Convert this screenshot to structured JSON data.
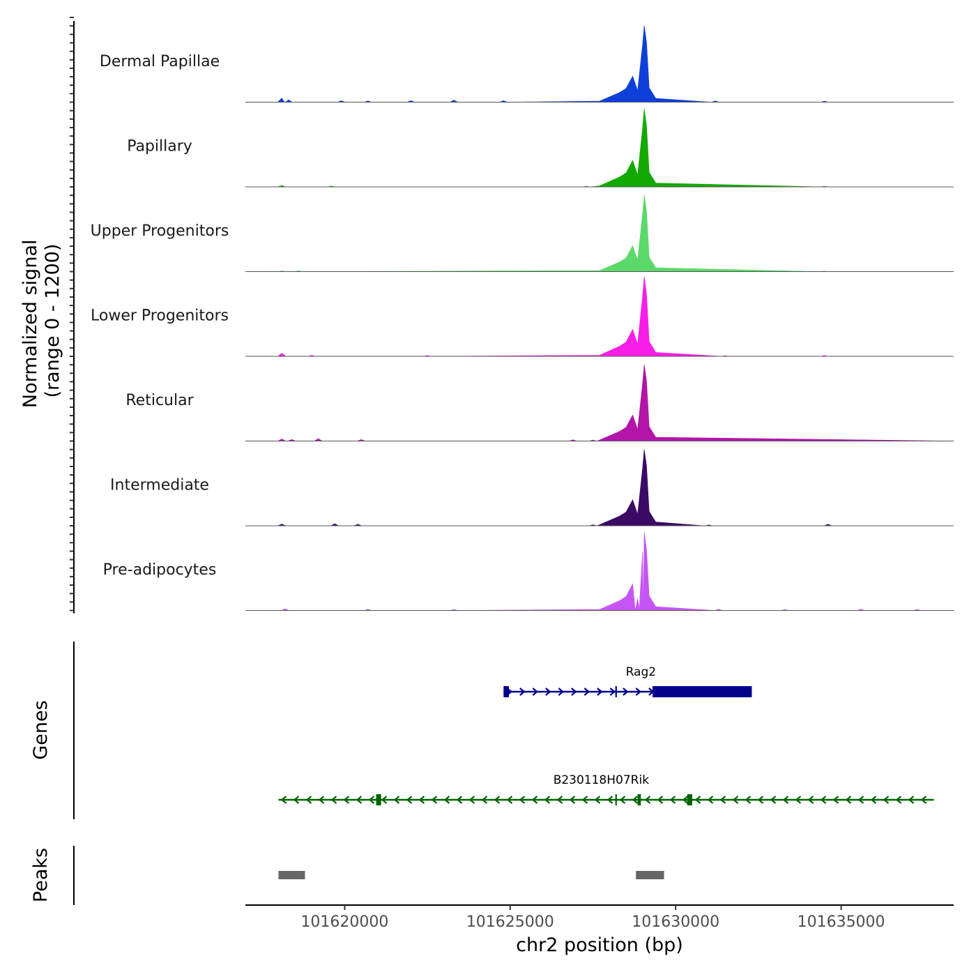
{
  "chart_data": {
    "type": "area",
    "region": {
      "chrom": "chr2",
      "start": 101617000,
      "end": 101638400
    },
    "y_axis_label_line1": "Normalized signal",
    "y_axis_label_line2": "(range 0 - 1200)",
    "ylim": [
      0,
      1200
    ],
    "xlabel": "chr2 position (bp)",
    "x_ticks": [
      {
        "value": 101620000,
        "label": "101620000"
      },
      {
        "value": 101625000,
        "label": "101625000"
      },
      {
        "value": 101630000,
        "label": "101630000"
      },
      {
        "value": 101635000,
        "label": "101635000"
      }
    ],
    "tracks": [
      {
        "name": "Dermal Papillae",
        "color": "#0F3FD9",
        "peak_scale": 1.0,
        "background": [
          [
            101618100,
            60
          ],
          [
            101618300,
            35
          ],
          [
            101619900,
            20
          ],
          [
            101620700,
            18
          ],
          [
            101622000,
            22
          ],
          [
            101623300,
            30
          ],
          [
            101624800,
            22
          ],
          [
            101631200,
            18
          ],
          [
            101634500,
            15
          ]
        ]
      },
      {
        "name": "Papillary",
        "color": "#13A900",
        "peak_scale": 1.02,
        "background": [
          [
            101618100,
            20
          ],
          [
            101619600,
            12
          ],
          [
            101627300,
            10
          ],
          [
            101634500,
            10
          ]
        ]
      },
      {
        "name": "Upper Progenitors",
        "color": "#5CD96B",
        "peak_scale": 1.0,
        "background": [
          [
            101618100,
            12
          ],
          [
            101618600,
            14
          ],
          [
            101634500,
            8
          ]
        ]
      },
      {
        "name": "Lower Progenitors",
        "color": "#F81DE8",
        "peak_scale": 1.04,
        "background": [
          [
            101618100,
            45
          ],
          [
            101619000,
            15
          ],
          [
            101622500,
            12
          ],
          [
            101631500,
            10
          ],
          [
            101634500,
            12
          ]
        ]
      },
      {
        "name": "Reticular",
        "color": "#B315A8",
        "peak_scale": 1.0,
        "background": [
          [
            101618100,
            30
          ],
          [
            101618400,
            22
          ],
          [
            101619200,
            35
          ],
          [
            101620500,
            22
          ],
          [
            101626900,
            18
          ],
          [
            101627500,
            15
          ]
        ]
      },
      {
        "name": "Intermediate",
        "color": "#3B0A64",
        "peak_scale": 1.0,
        "background": [
          [
            101618100,
            25
          ],
          [
            101619700,
            30
          ],
          [
            101620400,
            22
          ],
          [
            101627500,
            15
          ],
          [
            101631000,
            12
          ],
          [
            101634600,
            22
          ]
        ]
      },
      {
        "name": "Pre-adipocytes",
        "color": "#C556F5",
        "peak_scale": 1.02,
        "background": [
          [
            101618200,
            25
          ],
          [
            101620700,
            18
          ],
          [
            101623300,
            15
          ],
          [
            101628900,
            20
          ],
          [
            101631300,
            18
          ],
          [
            101633300,
            15
          ],
          [
            101635600,
            18
          ],
          [
            101637300,
            15
          ]
        ]
      }
    ],
    "peak_profile": [
      {
        "pos": 101627700,
        "value": 15
      },
      {
        "pos": 101628300,
        "value": 140
      },
      {
        "pos": 101628500,
        "value": 200
      },
      {
        "pos": 101628700,
        "value": 380
      },
      {
        "pos": 101628850,
        "value": 170
      },
      {
        "pos": 101629000,
        "value": 840
      },
      {
        "pos": 101629050,
        "value": 1120
      },
      {
        "pos": 101629120,
        "value": 880
      },
      {
        "pos": 101629200,
        "value": 210
      },
      {
        "pos": 101629400,
        "value": 55
      }
    ],
    "genes_label": "Genes",
    "genes": [
      {
        "name": "Rag2",
        "strand": "+",
        "color": "#00008B",
        "start": 101624800,
        "end": 101632300,
        "exons": [
          [
            101624800,
            101624960
          ],
          [
            101628200,
            101628260
          ],
          [
            101629300,
            101632300
          ]
        ]
      },
      {
        "name": "B230118H07Rik",
        "strand": "-",
        "color": "#006400",
        "start": 101618000,
        "end": 101637800,
        "exons": [
          [
            101620950,
            101621100
          ],
          [
            101628200,
            101628260
          ],
          [
            101628850,
            101628950
          ],
          [
            101630350,
            101630500
          ]
        ]
      }
    ],
    "peaks_label": "Peaks",
    "peaks": [
      {
        "start": 101618000,
        "end": 101618800
      },
      {
        "start": 101628800,
        "end": 101629650
      }
    ],
    "colors": {
      "peak_bar": "#666666",
      "axis": "#000000",
      "tick_text": "#4D4D4D",
      "baseline": "#555555"
    }
  }
}
